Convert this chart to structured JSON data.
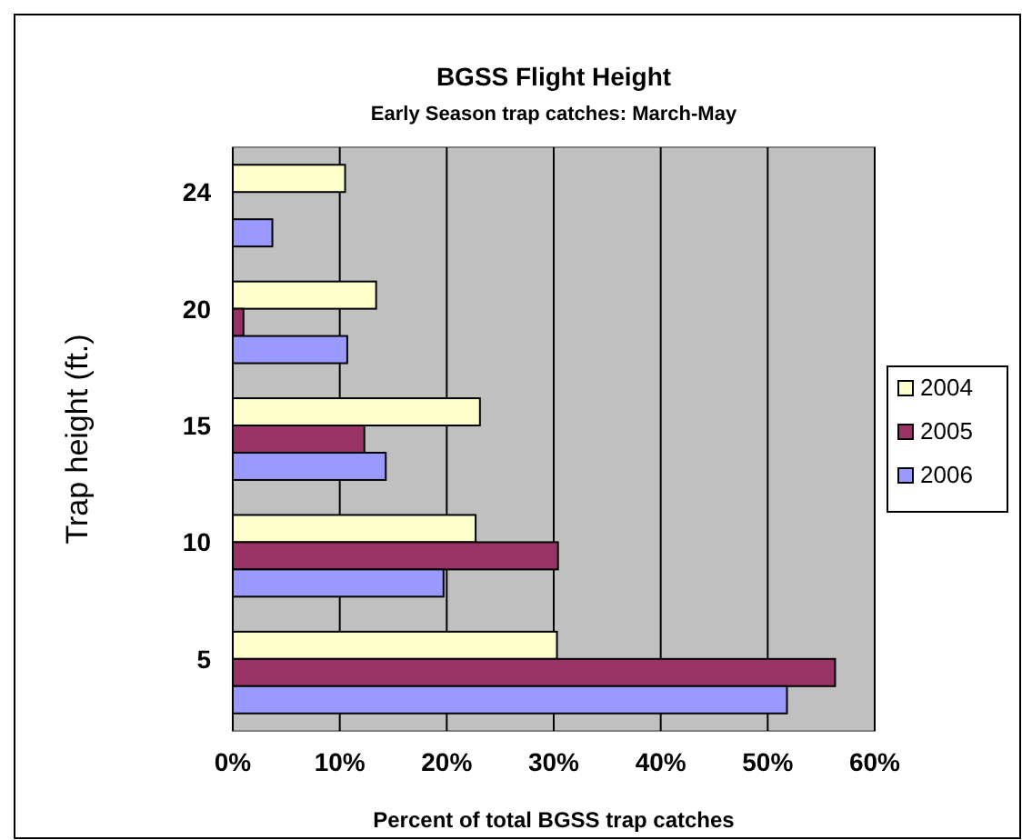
{
  "chart_data": {
    "type": "bar",
    "orientation": "horizontal",
    "title": "BGSS Flight Height",
    "subtitle": "Early Season trap catches: March-May",
    "xlabel": "Percent of total BGSS trap catches",
    "ylabel": "Trap height (ft.)",
    "categories": [
      "24",
      "20",
      "15",
      "10",
      "5"
    ],
    "series": [
      {
        "name": "2004",
        "color": "#ffffcc",
        "values": [
          10.5,
          13.4,
          23.1,
          22.7,
          30.3
        ]
      },
      {
        "name": "2005",
        "color": "#993366",
        "values": [
          null,
          1.0,
          12.3,
          30.4,
          56.3
        ]
      },
      {
        "name": "2006",
        "color": "#9999ff",
        "values": [
          3.7,
          10.7,
          14.3,
          19.7,
          51.8
        ]
      }
    ],
    "xlim": [
      0,
      60
    ],
    "xticks": [
      {
        "value": 0,
        "label": "0%"
      },
      {
        "value": 10,
        "label": "10%"
      },
      {
        "value": 20,
        "label": "20%"
      },
      {
        "value": 30,
        "label": "30%"
      },
      {
        "value": 40,
        "label": "40%"
      },
      {
        "value": 50,
        "label": "50%"
      },
      {
        "value": 60,
        "label": "60%"
      }
    ],
    "grid": "x",
    "legend": "right"
  }
}
